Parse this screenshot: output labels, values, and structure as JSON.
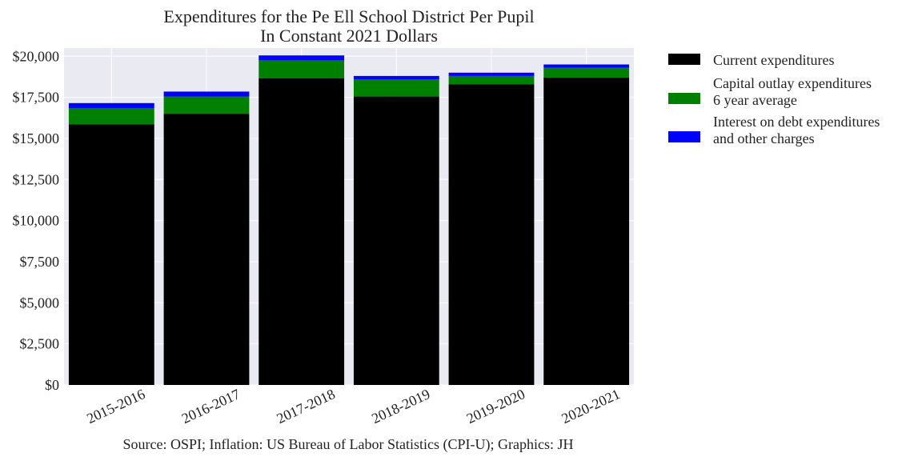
{
  "chart_data": {
    "type": "bar",
    "stacked": true,
    "title": [
      "Expenditures for the Pe Ell School District Per Pupil",
      "In Constant 2021 Dollars"
    ],
    "xlabel": "",
    "ylabel": "",
    "categories": [
      "2015-2016",
      "2016-2017",
      "2017-2018",
      "2018-2019",
      "2019-2020",
      "2020-2021"
    ],
    "ylim": [
      0,
      20500
    ],
    "yticks": [
      0,
      2500,
      5000,
      7500,
      10000,
      12500,
      15000,
      17500,
      20000
    ],
    "ytick_labels": [
      "$0",
      "$2,500",
      "$5,000",
      "$7,500",
      "$10,000",
      "$12,500",
      "$15,000",
      "$17,500",
      "$20,000"
    ],
    "grid": true,
    "legend_position": "outside-right",
    "series": [
      {
        "name": [
          "Current expenditures"
        ],
        "color": "#000000",
        "values": [
          15850,
          16500,
          18650,
          17550,
          18300,
          18700
        ]
      },
      {
        "name": [
          "Capital outlay expenditures",
          "6 year average"
        ],
        "color": "#008000",
        "values": [
          1000,
          1050,
          1100,
          1050,
          500,
          600
        ]
      },
      {
        "name": [
          "Interest on debt expenditures",
          "and other charges"
        ],
        "color": "#0000ff",
        "values": [
          300,
          300,
          300,
          200,
          200,
          200
        ]
      }
    ],
    "source": "Source: OSPI; Inflation: US Bureau of Labor Statistics (CPI-U); Graphics: JH"
  }
}
